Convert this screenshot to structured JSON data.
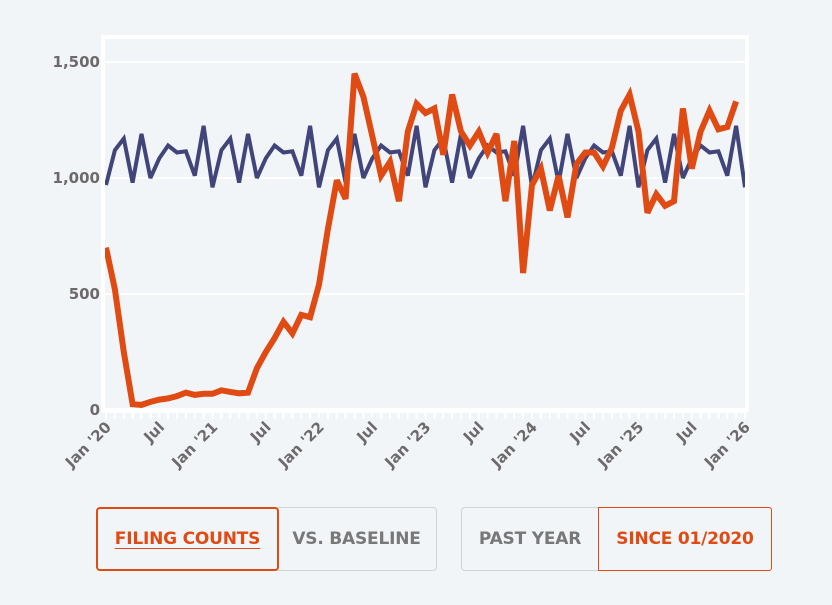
{
  "colors": {
    "background": "#f2f5f8",
    "plot_frame": "#ffffff",
    "grid": "#ffffff",
    "series_filings": "#e04a13",
    "series_baseline": "#414579",
    "tick_text": "#6d6a6c",
    "accent": "#e04a13",
    "inactive_text": "#787878"
  },
  "chart_data": {
    "type": "line",
    "title": "",
    "xlabel": "",
    "ylabel": "",
    "ylim": [
      0,
      1600
    ],
    "yticks": [
      0,
      500,
      1000,
      1500
    ],
    "ytick_labels": [
      "0",
      "500",
      "1,000",
      "1,500"
    ],
    "xlim": [
      "2020-01",
      "2026-01"
    ],
    "xticks": [
      "2020-01",
      "2020-07",
      "2021-01",
      "2021-07",
      "2022-01",
      "2022-07",
      "2023-01",
      "2023-07",
      "2024-01",
      "2024-07",
      "2025-01",
      "2025-07",
      "2026-01"
    ],
    "xtick_labels": [
      "Jan '20",
      "Jul",
      "Jan '21",
      "Jul",
      "Jan '22",
      "Jul",
      "Jan '23",
      "Jul",
      "Jan '24",
      "Jul",
      "Jan '25",
      "Jul",
      "Jan '26"
    ],
    "grid": true,
    "legend": "none",
    "x_start": "2020-01",
    "x_step": "month",
    "series": [
      {
        "name": "Baseline",
        "color": "#414579",
        "values": [
          970,
          1120,
          1170,
          980,
          1190,
          1000,
          1085,
          1140,
          1110,
          1115,
          1010,
          1225,
          960,
          1120,
          1170,
          980,
          1190,
          1000,
          1085,
          1140,
          1110,
          1115,
          1010,
          1225,
          960,
          1120,
          1170,
          980,
          1190,
          1000,
          1085,
          1140,
          1110,
          1115,
          1010,
          1225,
          960,
          1120,
          1170,
          980,
          1190,
          1000,
          1085,
          1140,
          1110,
          1115,
          1010,
          1225,
          960,
          1120,
          1170,
          980,
          1190,
          1000,
          1085,
          1140,
          1110,
          1115,
          1010,
          1225,
          960,
          1120,
          1170,
          980,
          1190,
          1000,
          1085,
          1140,
          1110,
          1115,
          1010,
          1225,
          960
        ]
      },
      {
        "name": "Filing Counts",
        "color": "#e04a13",
        "values": [
          700,
          520,
          250,
          25,
          22,
          35,
          45,
          50,
          60,
          75,
          65,
          70,
          70,
          85,
          78,
          72,
          75,
          180,
          250,
          310,
          380,
          330,
          410,
          400,
          540,
          780,
          990,
          910,
          1450,
          1350,
          1180,
          1010,
          1070,
          900,
          1200,
          1320,
          1280,
          1300,
          1100,
          1360,
          1200,
          1140,
          1200,
          1110,
          1190,
          900,
          1160,
          590,
          970,
          1040,
          860,
          1010,
          830,
          1060,
          1110,
          1110,
          1050,
          1130,
          1290,
          1360,
          1200,
          850,
          930,
          880,
          900,
          1300,
          1040,
          1200,
          1290,
          1210,
          1220,
          1330
        ]
      }
    ]
  },
  "controls": {
    "metric": {
      "options": [
        "FILING COUNTS",
        "VS. BASELINE"
      ],
      "selected": "FILING COUNTS"
    },
    "range": {
      "options": [
        "PAST YEAR",
        "SINCE 01/2020"
      ],
      "selected": "SINCE 01/2020"
    }
  }
}
